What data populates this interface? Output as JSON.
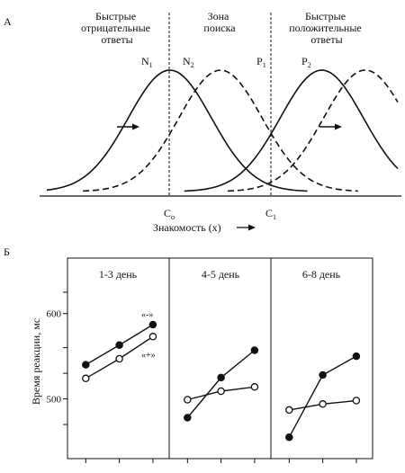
{
  "panel_a": {
    "letter": "А",
    "zone_left": [
      "Быстрые",
      "отрицательные",
      "ответы"
    ],
    "zone_mid": [
      "Зона",
      "поиска"
    ],
    "zone_right": [
      "Быстрые",
      "положительные",
      "ответы"
    ],
    "curves": [
      {
        "main": "N",
        "sub": "1",
        "mean": 0.36,
        "style": "solid"
      },
      {
        "main": "N",
        "sub": "2",
        "mean": 0.5,
        "style": "dashed"
      },
      {
        "main": "P",
        "sub": "1",
        "mean": 0.78,
        "style": "solid"
      },
      {
        "main": "P",
        "sub": "2",
        "mean": 0.9,
        "style": "dashed"
      }
    ],
    "criterion_low": {
      "main": "C",
      "sub": "о",
      "x": 0.44
    },
    "criterion_high": {
      "main": "C",
      "sub": "1",
      "x": 0.76
    },
    "x_axis_label": "Знакомость (x)"
  },
  "panel_b": {
    "letter": "Б",
    "ylabel": "Время реакции, мс",
    "yticks": [
      {
        "label": "600",
        "value": 600
      },
      {
        "label": "500",
        "value": 500
      }
    ],
    "ylim": [
      430,
      665
    ],
    "series_labels": {
      "filled": "«-»",
      "open": "«+»"
    },
    "groups": [
      {
        "title": "1-3 день",
        "filled": [
          540,
          563,
          587
        ],
        "open": [
          524,
          547,
          573
        ]
      },
      {
        "title": "4-5 день",
        "filled": [
          478,
          525,
          557
        ],
        "open": [
          499,
          509,
          514
        ]
      },
      {
        "title": "6-8 день",
        "filled": [
          455,
          528,
          550
        ],
        "open": [
          487,
          494,
          498
        ]
      }
    ]
  }
}
